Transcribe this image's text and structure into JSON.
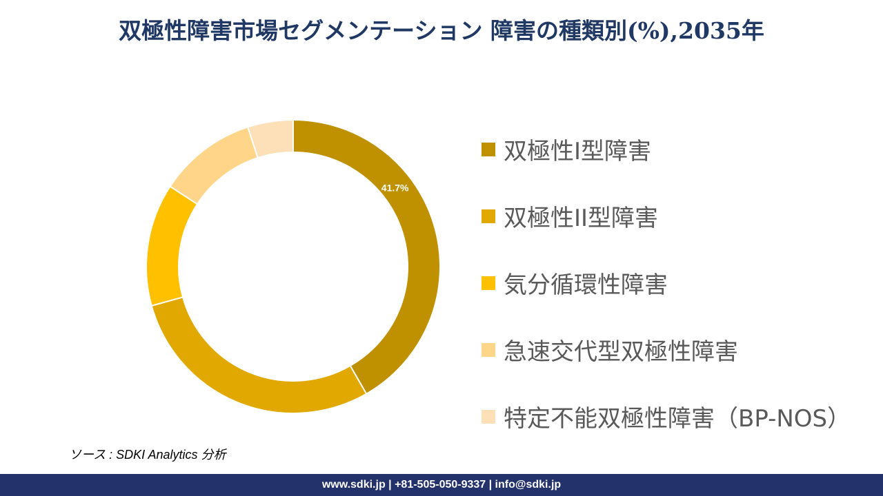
{
  "title": "双極性障害市場セグメンテーション 障害の種類別(%),2035年",
  "source": "ソース : SDKI Analytics 分析",
  "footer": "www.sdki.jp | +81-505-050-9337 | info@sdki.jp",
  "chart_data": {
    "type": "pie",
    "variant": "donut",
    "title": "双極性障害市場セグメンテーション 障害の種類別(%),2035年",
    "legend_position": "right",
    "categories": [
      "双極性I型障害",
      "双極性II型障害",
      "気分循環性障害",
      "急速交代型双極性障害",
      "特定不能双極性障害（BP-NOS）"
    ],
    "values": [
      41.7,
      29.0,
      13.5,
      10.8,
      5.0
    ],
    "colors": [
      "#bf9000",
      "#e0a800",
      "#ffc000",
      "#ffd58a",
      "#fde0b8"
    ],
    "data_labels": [
      "41.7%",
      "",
      "",
      "",
      ""
    ]
  }
}
